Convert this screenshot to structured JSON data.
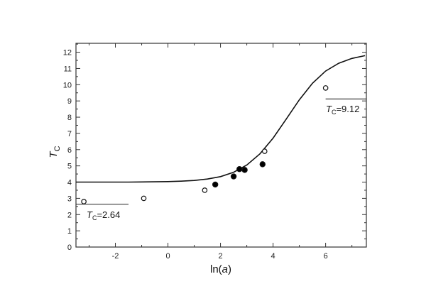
{
  "chart_data": {
    "type": "scatter",
    "title": "",
    "xlabel": "ln(a)",
    "ylabel": "T_C",
    "xlim": [
      -3.5,
      7.55
    ],
    "ylim": [
      0,
      12.55
    ],
    "grid": false,
    "legend": null,
    "x_ticks": [
      -2,
      0,
      2,
      4,
      6
    ],
    "x_tick_labels": [
      "-2",
      "0",
      "2",
      "4",
      "6"
    ],
    "y_ticks": [
      0,
      1,
      2,
      3,
      4,
      5,
      6,
      7,
      8,
      9,
      10,
      11,
      12
    ],
    "y_tick_labels": [
      "0",
      "1",
      "2",
      "3",
      "4",
      "5",
      "6",
      "7",
      "8",
      "9",
      "10",
      "11",
      "12"
    ],
    "series": [
      {
        "name": "theory curve",
        "style": "line",
        "x": [
          -3.5,
          -3,
          -2.5,
          -2,
          -1.5,
          -1,
          -0.5,
          0,
          0.5,
          1,
          1.5,
          2,
          2.5,
          3,
          3.5,
          4,
          4.5,
          5,
          5.5,
          6,
          6.5,
          7,
          7.5
        ],
        "y": [
          4.0,
          4.0,
          4.0,
          4.0,
          4.0,
          4.01,
          4.02,
          4.03,
          4.06,
          4.1,
          4.19,
          4.34,
          4.61,
          5.05,
          5.74,
          6.71,
          7.88,
          9.07,
          10.09,
          10.84,
          11.32,
          11.62,
          11.79
        ]
      },
      {
        "name": "open circles",
        "style": "open-marker",
        "x": [
          -3.2,
          -0.92,
          1.4,
          3.68,
          6.0
        ],
        "y": [
          2.8,
          3.0,
          3.5,
          5.9,
          9.8
        ]
      },
      {
        "name": "filled circles",
        "style": "filled-marker",
        "x": [
          1.8,
          2.5,
          2.72,
          2.92,
          3.6
        ],
        "y": [
          3.85,
          4.35,
          4.8,
          4.75,
          5.1
        ]
      }
    ],
    "annotations": [
      {
        "type": "hline",
        "y": 2.64,
        "x_range": [
          -3.5,
          -1.5
        ],
        "label": "T_C=2.64"
      },
      {
        "type": "hline",
        "y": 9.12,
        "x_range": [
          6.0,
          7.55
        ],
        "label": "T_C=9.12"
      }
    ]
  },
  "labels": {
    "xlabel_pre": "ln(",
    "xlabel_var": "a",
    "xlabel_post": ")",
    "ylabel_main": "T",
    "ylabel_sub": "C",
    "annot1_main": "T",
    "annot1_sub": "C",
    "annot1_val": "=2.64",
    "annot2_main": "T",
    "annot2_sub": "C",
    "annot2_val": "=9.12"
  }
}
